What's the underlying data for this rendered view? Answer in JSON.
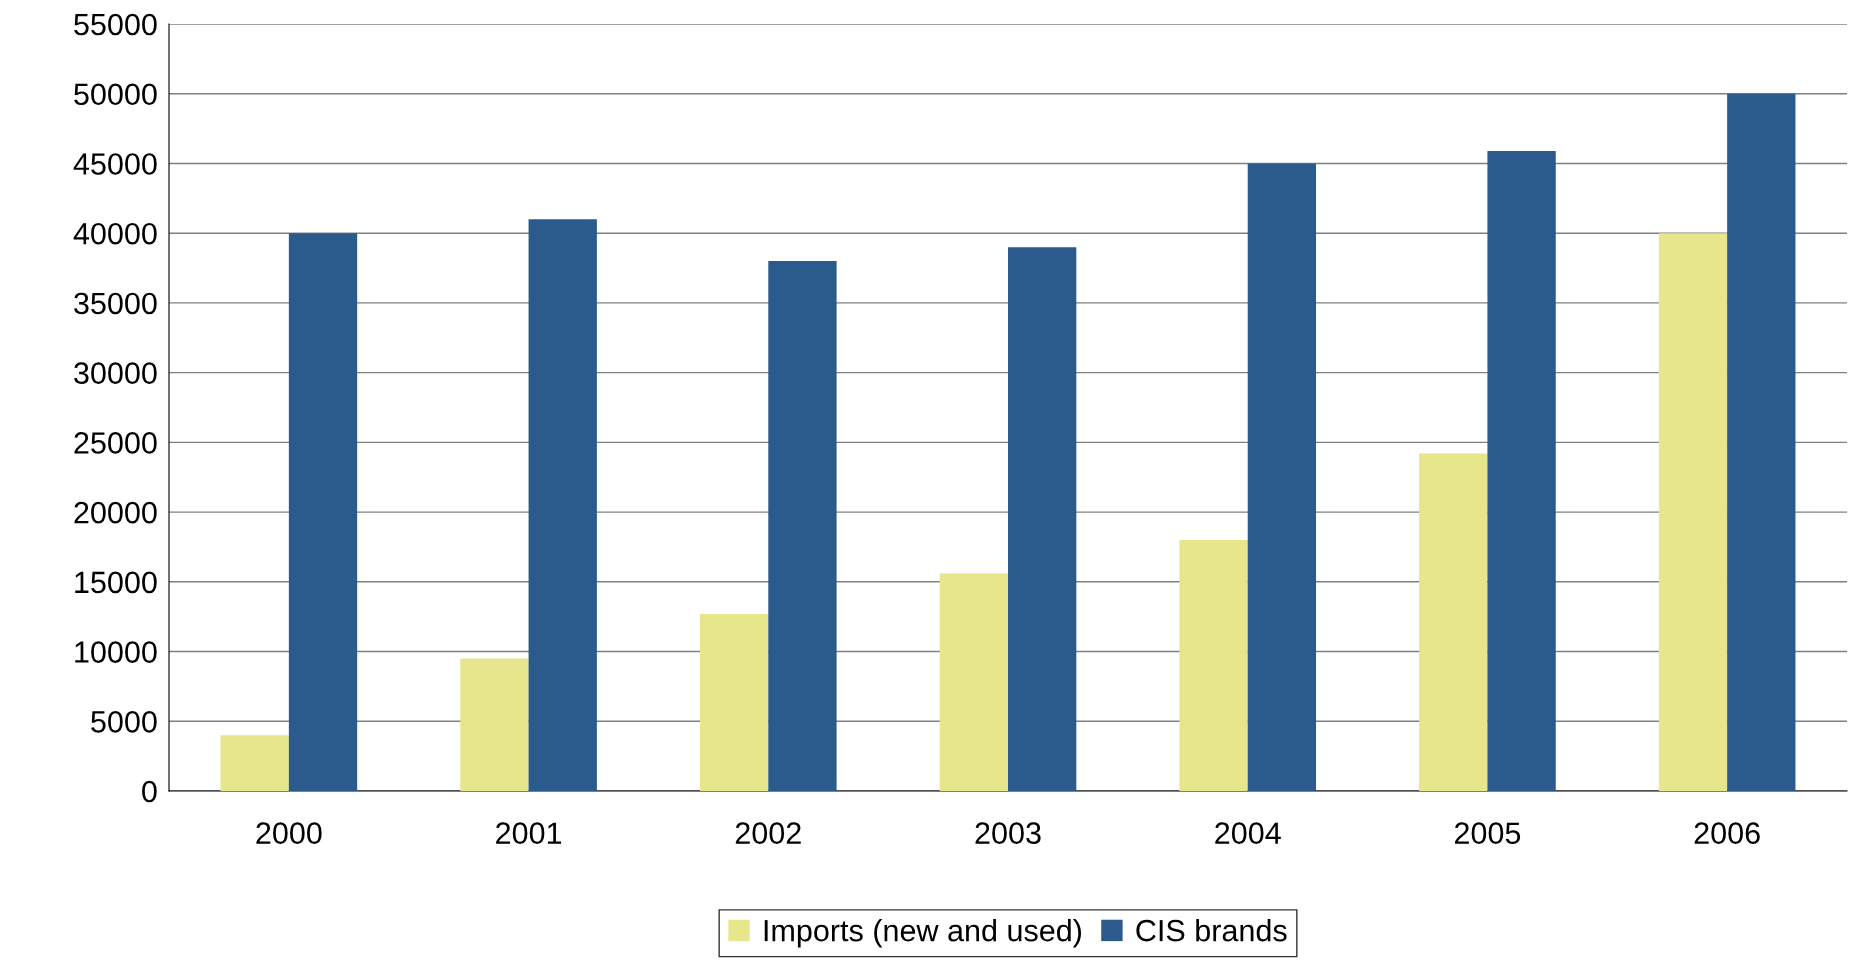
{
  "chart_data": {
    "type": "bar",
    "categories": [
      "2000",
      "2001",
      "2002",
      "2003",
      "2004",
      "2005",
      "2006"
    ],
    "series": [
      {
        "name": "Imports (new and used)",
        "color": "#e6e68c",
        "values": [
          4000,
          9500,
          12700,
          15600,
          18000,
          24200,
          40000
        ]
      },
      {
        "name": "CIS brands",
        "color": "#2b5b8c",
        "values": [
          40000,
          41000,
          38000,
          39000,
          45000,
          45900,
          50000
        ]
      }
    ],
    "ylim": [
      0,
      55000
    ],
    "yticks": [
      0,
      5000,
      10000,
      15000,
      20000,
      25000,
      30000,
      35000,
      40000,
      45000,
      50000,
      55000
    ],
    "grid": "y",
    "legend": "bottom"
  }
}
